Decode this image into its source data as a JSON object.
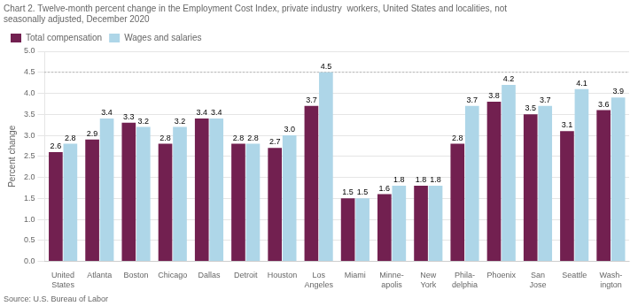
{
  "chart_data": {
    "type": "bar",
    "title": [
      "Chart 2. Twelve-month percent change in the Employment Cost Index, private industry  workers, United States and localities, not",
      "seasonally adjusted, December 2020"
    ],
    "source": "Source: U.S. Bureau of Labor",
    "ylabel": "Percent change",
    "categories": [
      "United\nStates",
      "Atlanta",
      "Boston",
      "Chicago",
      "Dallas",
      "Detroit",
      "Houston",
      "Los\nAngeles",
      "Miami",
      "Minne-\napolis",
      "New\nYork",
      "Phila-\ndelphia",
      "Phoenix",
      "San\nJose",
      "Seattle",
      "Wash-\nington"
    ],
    "series": [
      {
        "name": "Total compensation",
        "color": "#722050",
        "values": [
          2.6,
          2.9,
          3.3,
          2.8,
          3.4,
          2.8,
          2.7,
          3.7,
          1.5,
          1.6,
          1.8,
          2.8,
          3.8,
          3.5,
          3.1,
          3.6
        ],
        "value_labels": [
          "2.6",
          "2.9",
          "3.3",
          "2.8",
          "3.4",
          "2.8",
          "2.7",
          "3.7",
          "1.5",
          "1.6",
          "1.8",
          "2.8",
          "3.8",
          "3.5",
          "3.1",
          "3.6"
        ]
      },
      {
        "name": "Wages and salaries",
        "color": "#aed6e8",
        "values": [
          2.8,
          3.4,
          3.2,
          3.2,
          3.4,
          2.8,
          3.0,
          4.5,
          1.5,
          1.8,
          1.8,
          3.7,
          4.2,
          3.7,
          4.1,
          3.9
        ],
        "value_labels": [
          "2.8",
          "3.4",
          "3.2",
          "3.2",
          "3.4",
          "2.8",
          "3.0",
          "4.5",
          "1.5",
          "1.8",
          "1.8",
          "3.7",
          "4.2",
          "3.7",
          "4.1",
          "3.9"
        ]
      }
    ],
    "ylim": [
      0.0,
      5.0
    ],
    "yticks": [
      {
        "value": 0,
        "label": "0.0"
      },
      0.5,
      {
        "value": 1,
        "label": "1.0"
      },
      1.5,
      {
        "value": 2,
        "label": "2.0"
      },
      2.5,
      {
        "value": 3,
        "label": "3.0"
      },
      3.5,
      {
        "value": 4,
        "label": "4.0"
      },
      4.5,
      {
        "value": 5,
        "label": "5.0"
      }
    ],
    "reference_lines": [
      {
        "y": 4.5,
        "line_style": "dotted"
      }
    ],
    "grid": true,
    "legend": "upper left",
    "data_labels": true
  }
}
